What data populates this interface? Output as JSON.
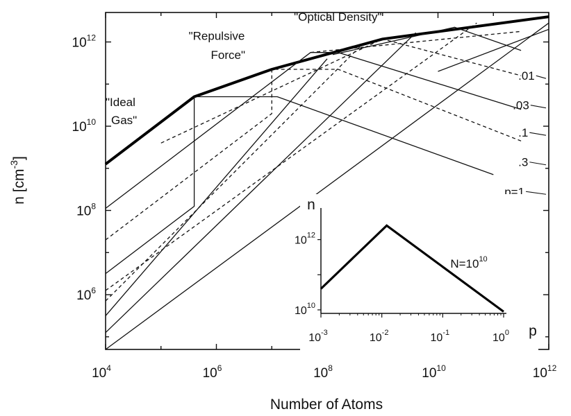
{
  "chart_data": [
    {
      "type": "line",
      "xlabel": "Number of Atoms",
      "ylabel_base": "n  [cm",
      "ylabel_exp": "-3",
      "ylabel_close": "]",
      "xscale": "log",
      "yscale": "log",
      "xlim_exp": [
        4,
        12
      ],
      "ylim_exp": [
        4.7,
        12.7
      ],
      "x_ticks_exp": [
        4,
        6,
        8,
        10,
        12
      ],
      "y_ticks_exp": [
        6,
        8,
        10,
        12
      ],
      "tick_base": "10",
      "grid": false,
      "annotations": [
        {
          "text": "\"Ideal",
          "x_exp": 4.0,
          "y_exp": 10.48
        },
        {
          "text": "Gas\"",
          "x_exp": 4.1,
          "y_exp": 10.05
        },
        {
          "text": "\"Repulsive",
          "x_exp": 5.5,
          "y_exp": 12.05
        },
        {
          "text": "Force\"",
          "x_exp": 5.9,
          "y_exp": 11.6
        },
        {
          "text": "\"Optical  Density\"",
          "x_exp": 7.4,
          "y_exp": 12.5
        }
      ],
      "upper_bound": {
        "style": "bold",
        "points_exp": [
          [
            4,
            9.1
          ],
          [
            5.6,
            10.7
          ],
          [
            7.0,
            11.35
          ],
          [
            9.0,
            12.07
          ],
          [
            12.0,
            12.6
          ]
        ]
      },
      "series": [
        {
          "name": "p=1",
          "label_x_exp": 11.2,
          "label_y_exp": 8.35,
          "style": "solid",
          "points_exp": [
            [
              4,
              4.7
            ],
            [
              12,
              12.45
            ]
          ]
        },
        {
          "name": "p=1",
          "style": "solid",
          "points_exp": [
            [
              4.0,
              6.5
            ],
            [
              5.6,
              8.1
            ],
            [
              5.6,
              10.7
            ],
            [
              7.1,
              10.7
            ],
            [
              11.0,
              8.85
            ]
          ]
        },
        {
          "name": ".3",
          "label_x_exp": 11.45,
          "label_y_exp": 9.05,
          "style": "dashed",
          "points_exp": [
            [
              4.0,
              7.3
            ],
            [
              7.0,
              10.3
            ],
            [
              7.0,
              11.35
            ],
            [
              8.2,
              11.35
            ],
            [
              11.5,
              9.65
            ]
          ]
        },
        {
          "name": ".1",
          "label_x_exp": 11.45,
          "label_y_exp": 9.75,
          "style": "solid",
          "points_exp": [
            [
              4.0,
              8.05
            ],
            [
              7.7,
              11.75
            ],
            [
              8.2,
              11.75
            ],
            [
              11.5,
              10.4
            ]
          ]
        },
        {
          "name": ".03",
          "label_x_exp": 11.35,
          "label_y_exp": 10.4,
          "style": "dashed",
          "points_exp": [
            [
              5.0,
              9.6
            ],
            [
              9.0,
              12.07
            ],
            [
              11.5,
              11.2
            ]
          ]
        },
        {
          "name": ".01",
          "label_x_exp": 11.45,
          "label_y_exp": 11.1,
          "style": "solid",
          "points_exp": [
            [
              8.1,
              11.7
            ],
            [
              10.3,
              12.35
            ],
            [
              11.5,
              11.8
            ]
          ]
        },
        {
          "name": "",
          "style": "solid",
          "points_exp": [
            [
              4.0,
              5.5
            ],
            [
              8.0,
              11.6
            ]
          ]
        },
        {
          "name": "",
          "style": "dashed",
          "points_exp": [
            [
              4.0,
              5.85
            ],
            [
              8.6,
              11.9
            ]
          ]
        },
        {
          "name": "",
          "style": "solid",
          "points_exp": [
            [
              4.0,
              5.1
            ],
            [
              9.6,
              12.22
            ]
          ]
        },
        {
          "name": "",
          "style": "dashed",
          "points_exp": [
            [
              4.0,
              6.1
            ],
            [
              10.7,
              12.45
            ]
          ]
        },
        {
          "name": "",
          "style": "dashed",
          "points_exp": [
            [
              7.7,
              11.75
            ],
            [
              11.5,
              12.25
            ]
          ]
        },
        {
          "name": "",
          "style": "solid",
          "points_exp": [
            [
              10.0,
              11.3
            ],
            [
              12.0,
              12.3
            ]
          ]
        }
      ]
    },
    {
      "type": "line",
      "inset": true,
      "ylabel": "n",
      "xlabel": "p",
      "annotation_base": "N=10",
      "annotation_exp": "10",
      "xscale": "log",
      "yscale": "log",
      "xlim_exp": [
        -3,
        0
      ],
      "ylim_exp": [
        9.9,
        12.9
      ],
      "x_ticks_exp": [
        -3,
        -2,
        -1,
        0
      ],
      "y_ticks_exp": [
        10,
        12
      ],
      "tick_base": "10",
      "points_exp": [
        [
          -3.0,
          10.6
        ],
        [
          -1.92,
          12.4
        ],
        [
          0.0,
          9.95
        ]
      ]
    }
  ]
}
